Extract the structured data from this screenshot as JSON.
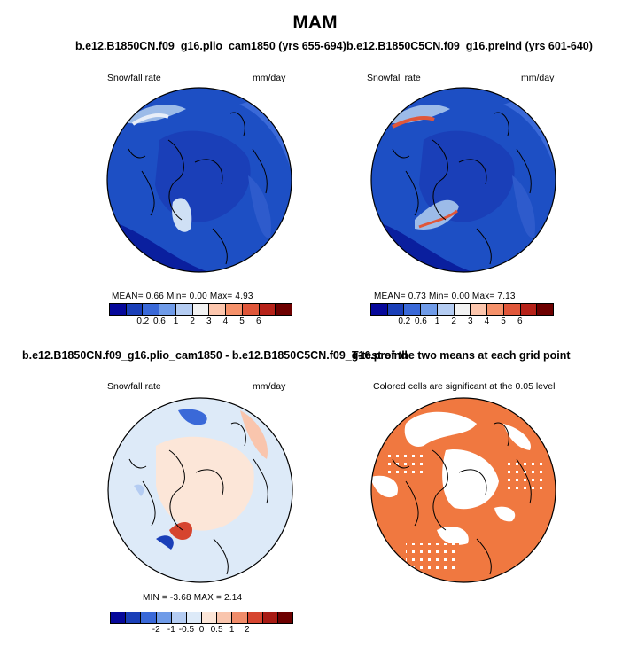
{
  "figure": {
    "title": "MAM"
  },
  "panels": [
    {
      "title": "b.e12.B1850CN.f09_g16.plio_cam1850 (yrs 655-694)",
      "variable": "Snowfall rate",
      "units": "mm/day",
      "stats": "MEAN=   0.66   Min=    0.00   Max=    4.93"
    },
    {
      "title": "b.e12.B1850C5CN.f09_g16.preind (yrs 601-640)",
      "variable": "Snowfall rate",
      "units": "mm/day",
      "stats": "MEAN=   0.73   Min=    0.00   Max=    7.13"
    },
    {
      "title": "b.e12.B1850CN.f09_g16.plio_cam1850 - b.e12.B1850C5CN.f09_g16.preind",
      "variable": "Snowfall rate",
      "units": "mm/day",
      "stats": "MIN  =   -3.68  MAX  =     2.14"
    },
    {
      "title": "T-test of the two means at each grid point",
      "note": "Colored cells are significant at the 0.05 level"
    }
  ],
  "chart_data": [
    {
      "type": "heatmap",
      "projection": "north polar stereographic",
      "title": "b.e12.B1850CN.f09_g16.plio_cam1850 (yrs 655-694)",
      "variable": "Snowfall rate",
      "units": "mm/day",
      "mean": 0.66,
      "min": 0.0,
      "max": 4.93,
      "colorbar_levels": [
        "0.2",
        "0.6",
        "1",
        "2",
        "3",
        "4",
        "5",
        "6"
      ],
      "colorbar_colors": [
        "#06089a",
        "#1a3fb8",
        "#3a69d8",
        "#6f9be8",
        "#b4ccf2",
        "#f2f2f2",
        "#fcc6ad",
        "#f5916a",
        "#e0573a",
        "#b62219",
        "#6d0000"
      ]
    },
    {
      "type": "heatmap",
      "projection": "north polar stereographic",
      "title": "b.e12.B1850C5CN.f09_g16.preind (yrs 601-640)",
      "variable": "Snowfall rate",
      "units": "mm/day",
      "mean": 0.73,
      "min": 0.0,
      "max": 7.13,
      "colorbar_levels": [
        "0.2",
        "0.6",
        "1",
        "2",
        "3",
        "4",
        "5",
        "6"
      ],
      "colorbar_colors": [
        "#06089a",
        "#1a3fb8",
        "#3a69d8",
        "#6f9be8",
        "#b4ccf2",
        "#f2f2f2",
        "#fcc6ad",
        "#f5916a",
        "#e0573a",
        "#b62219",
        "#6d0000"
      ]
    },
    {
      "type": "heatmap",
      "projection": "north polar stereographic",
      "title": "b.e12.B1850CN.f09_g16.plio_cam1850 - b.e12.B1850C5CN.f09_g16.preind",
      "variable": "Snowfall rate",
      "units": "mm/day",
      "min": -3.68,
      "max": 2.14,
      "colorbar_levels": [
        "-2",
        "-1",
        "-0.5",
        "0",
        "0.5",
        "1",
        "2"
      ],
      "colorbar_colors": [
        "#06089a",
        "#1a3fb8",
        "#3a69d8",
        "#6f9be8",
        "#b4ccf2",
        "#ddeaf8",
        "#fce6d8",
        "#f9c5ad",
        "#f08c6a",
        "#d6452f",
        "#a81b14",
        "#6d0000"
      ]
    },
    {
      "type": "heatmap",
      "projection": "north polar stereographic",
      "title": "T-test of the two means at each grid point",
      "annotation": "Colored cells are significant at the 0.05 level",
      "significance_level": 0.05,
      "significant_color": "#f07840"
    }
  ]
}
